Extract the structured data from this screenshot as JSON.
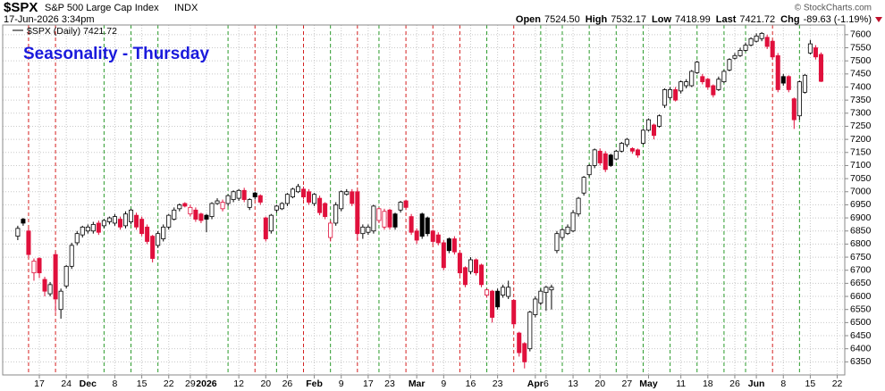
{
  "chart_data": {
    "type": "candlestick",
    "symbol": "$SPX",
    "name": "S&P 500 Large Cap Index",
    "exchange": "INDX",
    "timestamp": "17-Jun-2026 3:34pm",
    "quote": [
      {
        "label": "Open",
        "value": "7524.50"
      },
      {
        "label": "High",
        "value": "7532.17"
      },
      {
        "label": "Low",
        "value": "7418.99"
      },
      {
        "label": "Last",
        "value": "7421.72"
      },
      {
        "label": "Chg",
        "value": "-89.63 (-1.19%)"
      }
    ],
    "credit": "© StockCharts.com",
    "legend": "$SPX (Daily) 7421.72",
    "title": "Seasonality - Thursday",
    "open": [
      6830,
      6895,
      6850,
      6690,
      6745,
      6665,
      6610,
      6760,
      6550,
      6640,
      6715,
      6805,
      6835,
      6850,
      6850,
      6880,
      6870,
      6885,
      6880,
      6895,
      6870,
      6885,
      6910,
      6895,
      6865,
      6830,
      6795,
      6820,
      6865,
      6895,
      6935,
      6955,
      6915,
      6930,
      6915,
      6910,
      6905,
      6955,
      6935,
      6955,
      6970,
      6975,
      7005,
      6940,
      6995,
      6985,
      6900,
      6850,
      6930,
      6935,
      6955,
      6980,
      7000,
      7010,
      7000,
      6955,
      6975,
      6955,
      6825,
      6880,
      6935,
      6990,
      7000,
      7000,
      6840,
      6845,
      6850,
      6890,
      6865,
      6930,
      6915,
      6930,
      6965,
      6905,
      6850,
      6915,
      6900,
      6850,
      6835,
      6805,
      6820,
      6820,
      6765,
      6710,
      6695,
      6740,
      6720,
      6605,
      6620,
      6620,
      6605,
      6600,
      6585,
      6460,
      6420,
      6400,
      6530,
      6575,
      6615,
      6625,
      6775,
      6825,
      6840,
      6850,
      6915,
      6995,
      7065,
      7100,
      7155,
      7145,
      7140,
      7125,
      7155,
      7180,
      7165,
      7160,
      7185,
      7235,
      7255,
      7250,
      7330,
      7360,
      7390,
      7385,
      7405,
      7405,
      7455,
      7440,
      7430,
      7405,
      7390,
      7420,
      7465,
      7510,
      7520,
      7540,
      7560,
      7575,
      7585,
      7590,
      7575,
      7520,
      7440,
      7440,
      7355,
      7290,
      7380,
      7530,
      7550,
      7524.5
    ],
    "high": [
      6870,
      6900,
      6860,
      6745,
      6750,
      6675,
      6655,
      6770,
      6630,
      6720,
      6805,
      6850,
      6870,
      6875,
      6885,
      6890,
      6895,
      6905,
      6915,
      6905,
      6925,
      6935,
      6920,
      6905,
      6875,
      6835,
      6850,
      6875,
      6915,
      6940,
      6955,
      6960,
      6950,
      6940,
      6920,
      6915,
      6960,
      6975,
      6970,
      6990,
      7005,
      7010,
      7015,
      6975,
      7000,
      6990,
      6905,
      6915,
      6950,
      6960,
      6995,
      7015,
      7030,
      7020,
      7010,
      6995,
      6985,
      6960,
      6890,
      6960,
      7005,
      7010,
      7010,
      7005,
      6875,
      6875,
      6950,
      6940,
      6935,
      6935,
      6920,
      6965,
      6970,
      6915,
      6860,
      6920,
      6905,
      6855,
      6845,
      6815,
      6825,
      6830,
      6770,
      6715,
      6750,
      6745,
      6725,
      6630,
      6625,
      6630,
      6645,
      6660,
      6590,
      6465,
      6425,
      6545,
      6600,
      6630,
      6640,
      6645,
      6850,
      6860,
      6875,
      6930,
      6980,
      7060,
      7105,
      7165,
      7165,
      7155,
      7145,
      7160,
      7190,
      7205,
      7170,
      7165,
      7240,
      7280,
      7260,
      7295,
      7395,
      7400,
      7400,
      7425,
      7430,
      7465,
      7500,
      7450,
      7435,
      7410,
      7440,
      7465,
      7510,
      7530,
      7550,
      7570,
      7590,
      7605,
      7610,
      7600,
      7580,
      7530,
      7450,
      7445,
      7360,
      7425,
      7450,
      7580,
      7560,
      7532.17
    ],
    "low": [
      6815,
      6870,
      6750,
      6660,
      6670,
      6600,
      6600,
      6540,
      6515,
      6630,
      6705,
      6795,
      6825,
      6840,
      6840,
      6835,
      6860,
      6875,
      6870,
      6855,
      6860,
      6875,
      6855,
      6830,
      6800,
      6730,
      6785,
      6810,
      6855,
      6890,
      6925,
      6940,
      6905,
      6885,
      6880,
      6845,
      6895,
      6950,
      6925,
      6945,
      6960,
      6965,
      6960,
      6930,
      6970,
      6950,
      6810,
      6840,
      6920,
      6930,
      6945,
      6975,
      6995,
      6970,
      6950,
      6945,
      6910,
      6895,
      6810,
      6870,
      6925,
      6985,
      6945,
      6815,
      6820,
      6835,
      6840,
      6880,
      6855,
      6855,
      6855,
      6920,
      6930,
      6835,
      6800,
      6820,
      6830,
      6800,
      6795,
      6700,
      6765,
      6760,
      6680,
      6635,
      6685,
      6680,
      6635,
      6595,
      6500,
      6550,
      6595,
      6590,
      6485,
      6370,
      6325,
      6390,
      6520,
      6565,
      6545,
      6550,
      6765,
      6815,
      6835,
      6845,
      6905,
      6985,
      7055,
      7090,
      7100,
      7075,
      7095,
      7120,
      7150,
      7170,
      7145,
      7130,
      7180,
      7230,
      7200,
      7245,
      7320,
      7350,
      7345,
      7375,
      7395,
      7400,
      7450,
      7410,
      7390,
      7360,
      7385,
      7415,
      7460,
      7505,
      7515,
      7535,
      7555,
      7570,
      7575,
      7545,
      7505,
      7380,
      7405,
      7380,
      7240,
      7275,
      7375,
      7525,
      7505,
      7418.99
    ],
    "close": [
      6860,
      6880,
      6760,
      6735,
      6690,
      6620,
      6645,
      6590,
      6620,
      6715,
      6795,
      6840,
      6865,
      6865,
      6875,
      6845,
      6890,
      6900,
      6905,
      6865,
      6915,
      6930,
      6865,
      6840,
      6810,
      6745,
      6840,
      6865,
      6910,
      6930,
      6950,
      6945,
      6940,
      6895,
      6890,
      6895,
      6955,
      6965,
      6960,
      6985,
      7000,
      7005,
      6970,
      6970,
      6980,
      6960,
      6820,
      6910,
      6945,
      6955,
      6990,
      7010,
      7020,
      6980,
      6960,
      6990,
      6920,
      6905,
      6880,
      6950,
      7000,
      7000,
      6955,
      6840,
      6865,
      6865,
      6945,
      6935,
      6925,
      6865,
      6865,
      6960,
      6940,
      6845,
      6815,
      6830,
      6840,
      6810,
      6805,
      6710,
      6775,
      6770,
      6690,
      6645,
      6740,
      6690,
      6645,
      6625,
      6520,
      6560,
      6635,
      6635,
      6495,
      6385,
      6350,
      6540,
      6590,
      6620,
      6635,
      6635,
      6840,
      6855,
      6865,
      6920,
      6975,
      7055,
      7100,
      7160,
      7110,
      7085,
      7100,
      7155,
      7185,
      7200,
      7155,
      7140,
      7235,
      7275,
      7215,
      7290,
      7390,
      7390,
      7350,
      7420,
      7420,
      7460,
      7495,
      7420,
      7400,
      7370,
      7430,
      7460,
      7505,
      7520,
      7540,
      7560,
      7585,
      7595,
      7605,
      7555,
      7515,
      7390,
      7415,
      7390,
      7275,
      7420,
      7445,
      7565,
      7515,
      7421.72
    ],
    "thursdays": [
      2,
      7,
      16,
      21,
      26,
      39,
      44,
      48,
      53,
      58,
      63,
      67,
      72,
      77,
      82,
      87,
      92,
      97,
      101,
      106,
      111,
      116,
      121,
      126,
      131,
      135,
      140,
      145
    ],
    "up_color": "#000000",
    "down_color": "#e0103c",
    "thursday_up_color": "#2a9a2a",
    "thursday_down_color": "#d42020",
    "xlim": [
      -2.8,
      153.4
    ],
    "xticks": [
      {
        "value": 4,
        "label": "17"
      },
      {
        "value": 9,
        "label": "24"
      },
      {
        "value": 13,
        "label": "Dec"
      },
      {
        "value": 18,
        "label": "8"
      },
      {
        "value": 23,
        "label": "15"
      },
      {
        "value": 28,
        "label": "22"
      },
      {
        "value": 32,
        "label": "29"
      },
      {
        "value": 35,
        "label": "2026"
      },
      {
        "value": 41,
        "label": "12"
      },
      {
        "value": 46,
        "label": "20"
      },
      {
        "value": 50,
        "label": "26"
      },
      {
        "value": 55,
        "label": "Feb"
      },
      {
        "value": 60,
        "label": "9"
      },
      {
        "value": 65,
        "label": "17"
      },
      {
        "value": 69,
        "label": "23"
      },
      {
        "value": 74,
        "label": "Mar"
      },
      {
        "value": 79,
        "label": "9"
      },
      {
        "value": 84,
        "label": "16"
      },
      {
        "value": 89,
        "label": "23"
      },
      {
        "value": 96,
        "label": "Apr"
      },
      {
        "value": 98,
        "label": "6"
      },
      {
        "value": 103,
        "label": "13"
      },
      {
        "value": 108,
        "label": "20"
      },
      {
        "value": 113,
        "label": "27"
      },
      {
        "value": 117,
        "label": "May"
      },
      {
        "value": 123,
        "label": "11"
      },
      {
        "value": 128,
        "label": "18"
      },
      {
        "value": 133,
        "label": "26"
      },
      {
        "value": 137,
        "label": "Jun"
      },
      {
        "value": 142,
        "label": "8"
      },
      {
        "value": 147,
        "label": "15"
      },
      {
        "value": 152,
        "label": "22"
      }
    ],
    "ylim": [
      6300,
      7637
    ],
    "yticks": [
      6350,
      6400,
      6450,
      6500,
      6550,
      6600,
      6650,
      6700,
      6750,
      6800,
      6850,
      6900,
      6950,
      7000,
      7050,
      7100,
      7150,
      7200,
      7250,
      7300,
      7350,
      7400,
      7450,
      7500,
      7550,
      7600
    ],
    "grid": true
  }
}
